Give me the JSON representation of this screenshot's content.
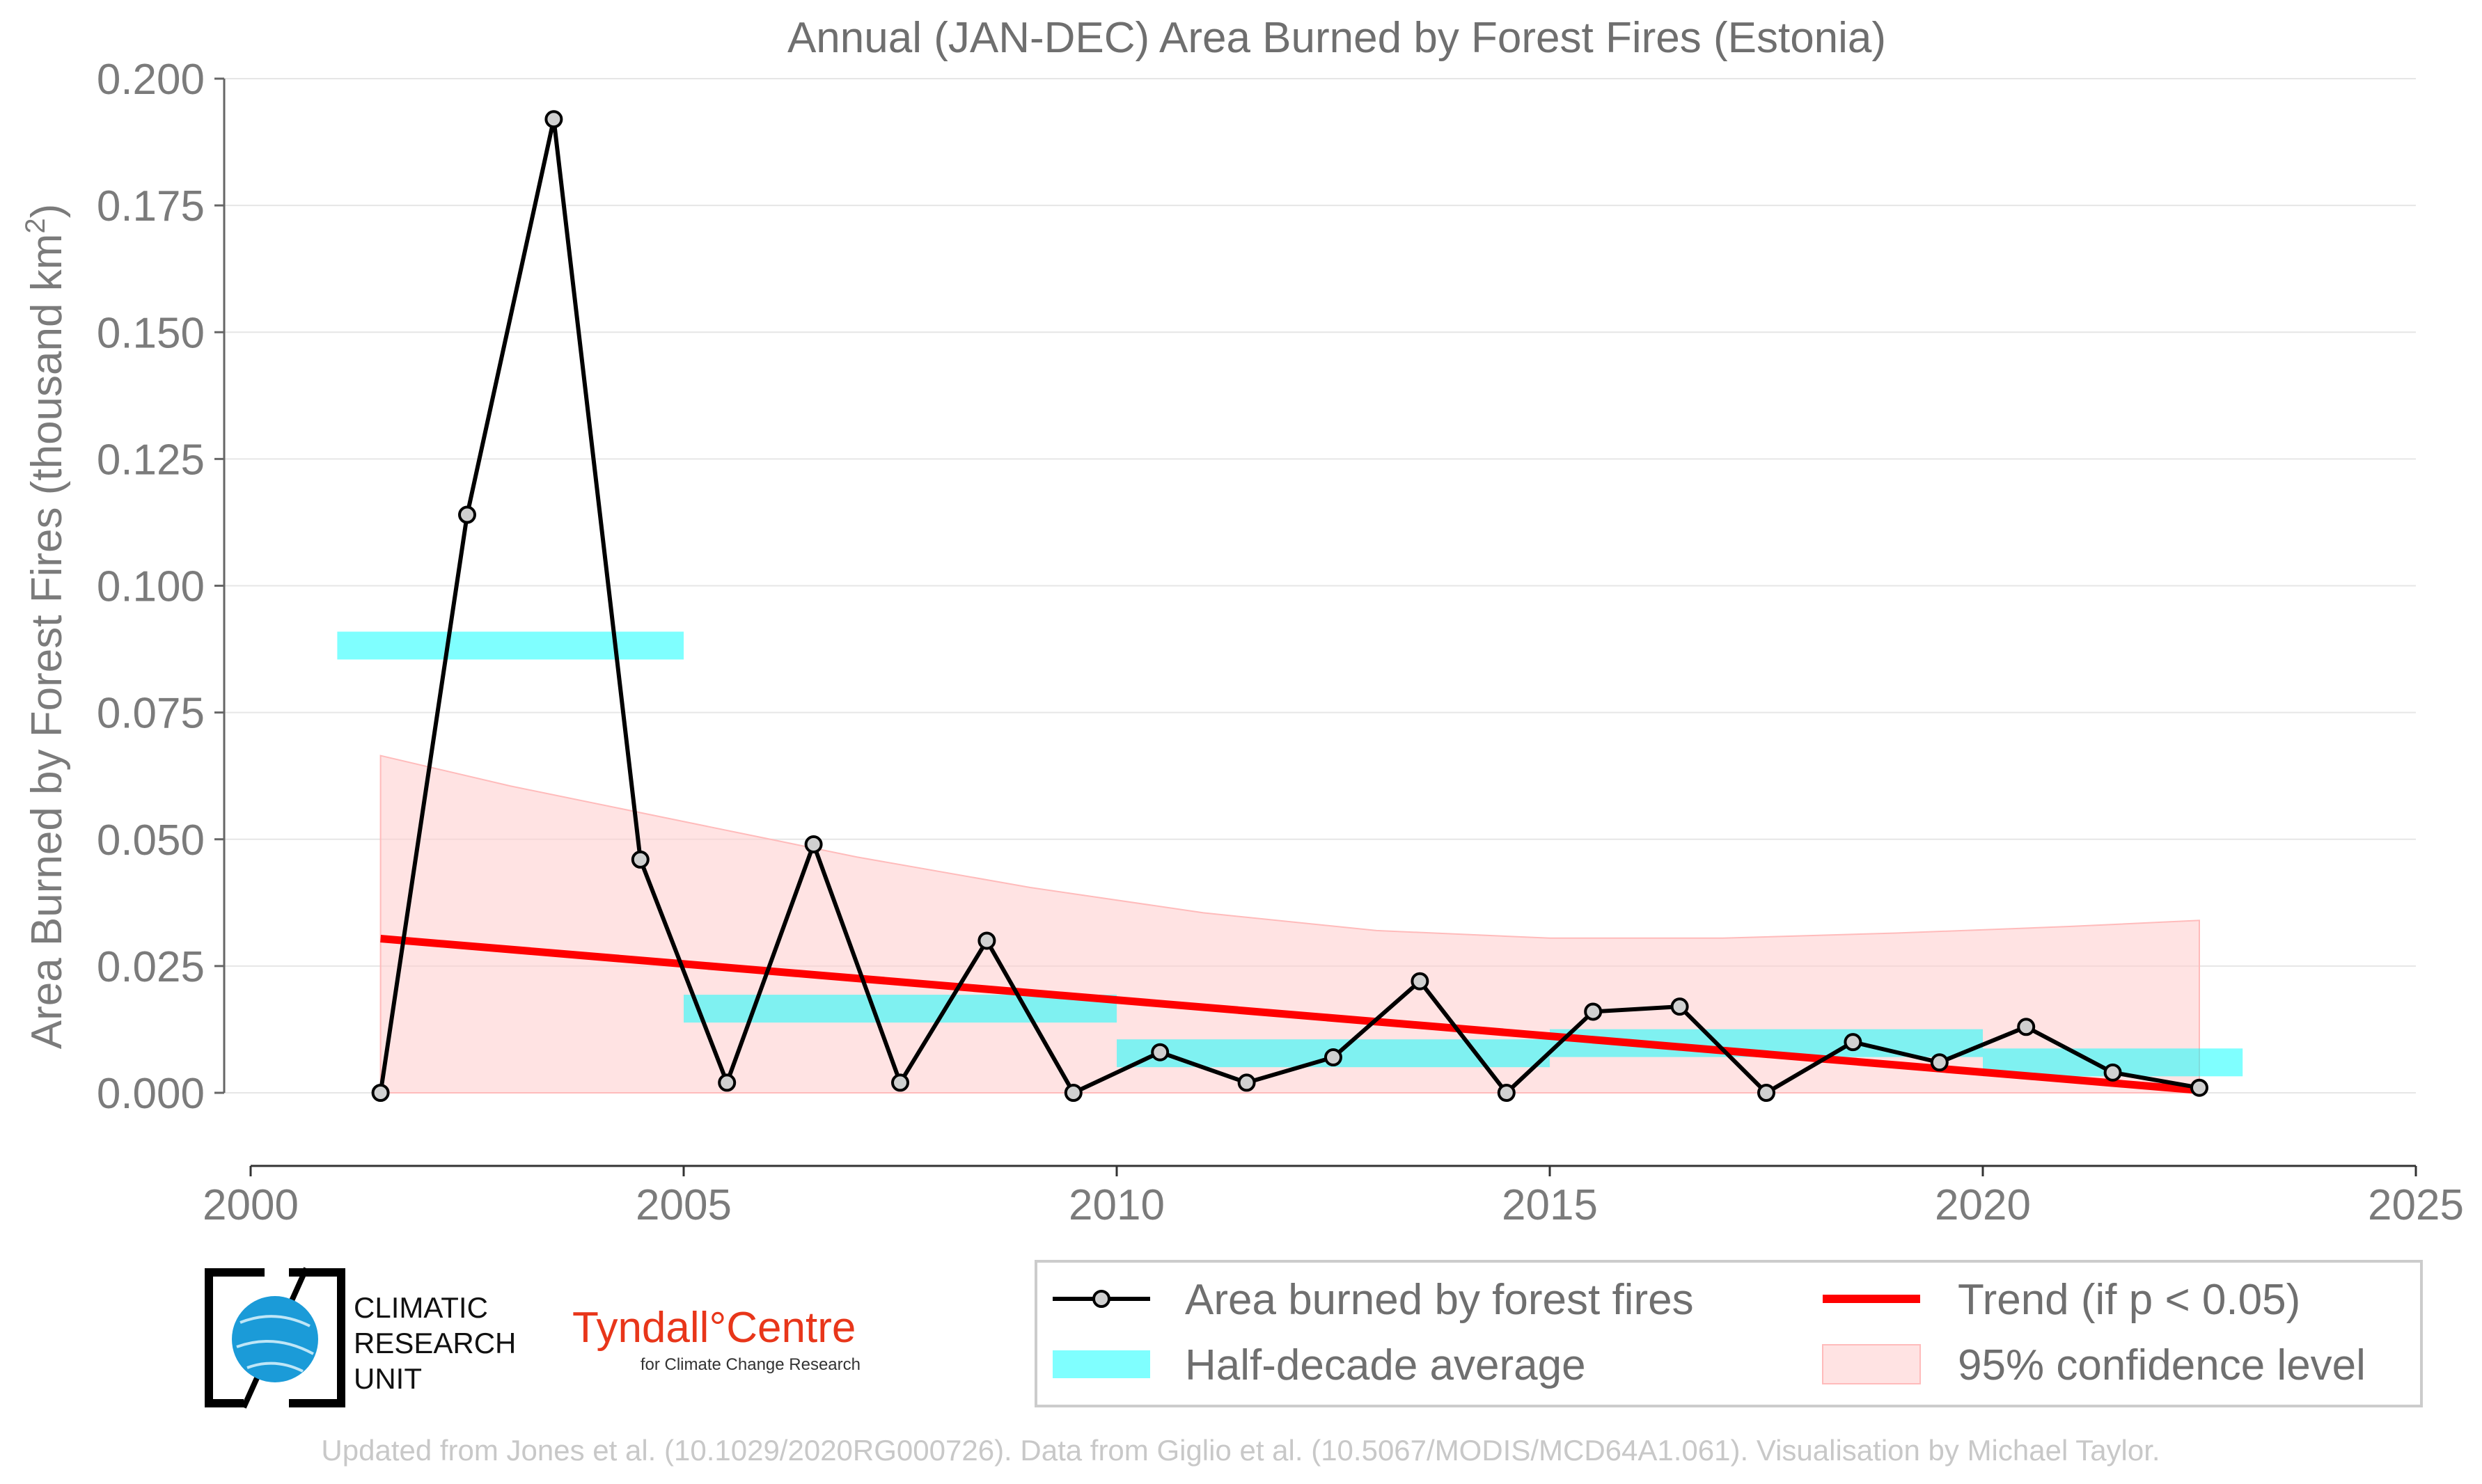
{
  "chart_data": {
    "type": "line",
    "title": "Annual (JAN-DEC) Area Burned by Forest Fires (Estonia)",
    "ylabel": "Area Burned by Forest Fires (thousand km",
    "ylabel_sup": "2",
    "ylabel_end": ")",
    "xlim": [
      2000,
      2025
    ],
    "ylim": [
      -0.015,
      0.2
    ],
    "x_ticks": [
      2000,
      2005,
      2010,
      2015,
      2020,
      2025
    ],
    "x_tick_labels": [
      "2000",
      "2005",
      "2010",
      "2015",
      "2020",
      "2025"
    ],
    "y_ticks": [
      0.0,
      0.025,
      0.05,
      0.075,
      0.1,
      0.125,
      0.15,
      0.175,
      0.2
    ],
    "y_tick_labels": [
      "0.000",
      "0.025",
      "0.050",
      "0.075",
      "0.100",
      "0.125",
      "0.150",
      "0.175",
      "0.200"
    ],
    "grid": "horizontal",
    "series": [
      {
        "name": "Area burned by forest fires",
        "kind": "line-markers",
        "color": "#000000",
        "x": [
          2001.5,
          2002.5,
          2003.5,
          2004.5,
          2005.5,
          2006.5,
          2007.5,
          2008.5,
          2009.5,
          2010.5,
          2011.5,
          2012.5,
          2013.5,
          2014.5,
          2015.5,
          2016.5,
          2017.5,
          2018.5,
          2019.5,
          2020.5,
          2021.5,
          2022.5
        ],
        "y": [
          0.0,
          0.114,
          0.192,
          0.046,
          0.002,
          0.049,
          0.002,
          0.03,
          0.0,
          0.008,
          0.002,
          0.007,
          0.022,
          0.0,
          0.016,
          0.017,
          0.0,
          0.01,
          0.006,
          0.013,
          0.004,
          0.001
        ]
      },
      {
        "name": "Half-decade average",
        "kind": "bars",
        "color": "#00ffff",
        "segments": [
          {
            "x0": 2001.0,
            "x1": 2005.0,
            "y": 0.0882
          },
          {
            "x0": 2005.0,
            "x1": 2010.0,
            "y": 0.0166
          },
          {
            "x0": 2010.0,
            "x1": 2015.0,
            "y": 0.0078
          },
          {
            "x0": 2015.0,
            "x1": 2020.0,
            "y": 0.0098
          },
          {
            "x0": 2020.0,
            "x1": 2023.0,
            "y": 0.006
          }
        ]
      },
      {
        "name": "Trend (if p < 0.05)",
        "kind": "trend",
        "color": "#ff0000",
        "x": [
          2001.5,
          2022.5
        ],
        "y": [
          0.0304,
          0.0005
        ]
      },
      {
        "name": "95% confidence level",
        "kind": "band",
        "color": "#ffcccc",
        "x": [
          2001.5,
          2003,
          2005,
          2007,
          2009,
          2011,
          2013,
          2015,
          2017,
          2019,
          2021,
          2022.5
        ],
        "lower": [
          0,
          0,
          0,
          0,
          0,
          0,
          0,
          0,
          0,
          0,
          0,
          0
        ],
        "upper": [
          0.0665,
          0.0605,
          0.0535,
          0.0465,
          0.0405,
          0.0355,
          0.032,
          0.0305,
          0.0305,
          0.0315,
          0.0328,
          0.034
        ]
      }
    ],
    "legend": {
      "placement": "bottom",
      "entries": [
        "Area burned by forest fires",
        "Trend (if p < 0.05)",
        "Half-decade average",
        "95% confidence level"
      ]
    }
  },
  "logos": {
    "cru": [
      "CLIMATIC",
      "RESEARCH",
      "UNIT"
    ],
    "tyndall_main": "Tyndall°Centre",
    "tyndall_sub": "for Climate Change Research"
  },
  "footer": "Updated from Jones et al. (10.1029/2020RG000726). Data from Giglio et al. (10.5067/MODIS/MCD64A1.061). Visualisation by Michael Taylor."
}
